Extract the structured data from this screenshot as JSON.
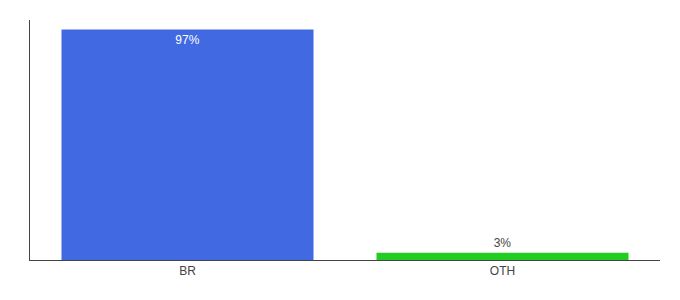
{
  "chart_data": {
    "type": "bar",
    "categories": [
      "BR",
      "OTH"
    ],
    "values": [
      97,
      3
    ],
    "value_labels": [
      "97%",
      "3%"
    ],
    "colors": [
      "#4169e1",
      "#22cc22"
    ],
    "ylim": [
      0,
      101
    ],
    "data_labels": true,
    "tick_labels": "x",
    "grid": false
  }
}
